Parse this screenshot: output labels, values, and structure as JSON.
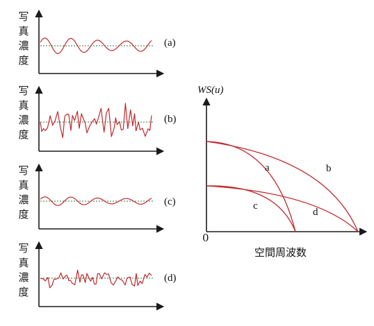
{
  "panels": [
    {
      "id": "a",
      "tag": "(a)",
      "ylabel": [
        "写",
        "真",
        "濃",
        "度"
      ],
      "kind": "smooth",
      "amp": 9
    },
    {
      "id": "b",
      "tag": "(b)",
      "ylabel": [
        "写",
        "真",
        "濃",
        "度"
      ],
      "kind": "noisy",
      "amp": 24
    },
    {
      "id": "c",
      "tag": "(c)",
      "ylabel": [
        "写",
        "真",
        "濃",
        "度"
      ],
      "kind": "smooth",
      "amp": 5
    },
    {
      "id": "d",
      "tag": "(d)",
      "ylabel": [
        "写",
        "真",
        "濃",
        "度"
      ],
      "kind": "noisy",
      "amp": 12
    }
  ],
  "spectrum": {
    "ylabel": "WS(u)",
    "xlabel": "空間周波数",
    "origin": "0",
    "curves": [
      {
        "tag": "a"
      },
      {
        "tag": "b"
      },
      {
        "tag": "c"
      },
      {
        "tag": "d"
      }
    ]
  },
  "colors": {
    "curve": "#c0282c",
    "axis": "#1a1a1a",
    "mean": "#2a7a3a"
  }
}
